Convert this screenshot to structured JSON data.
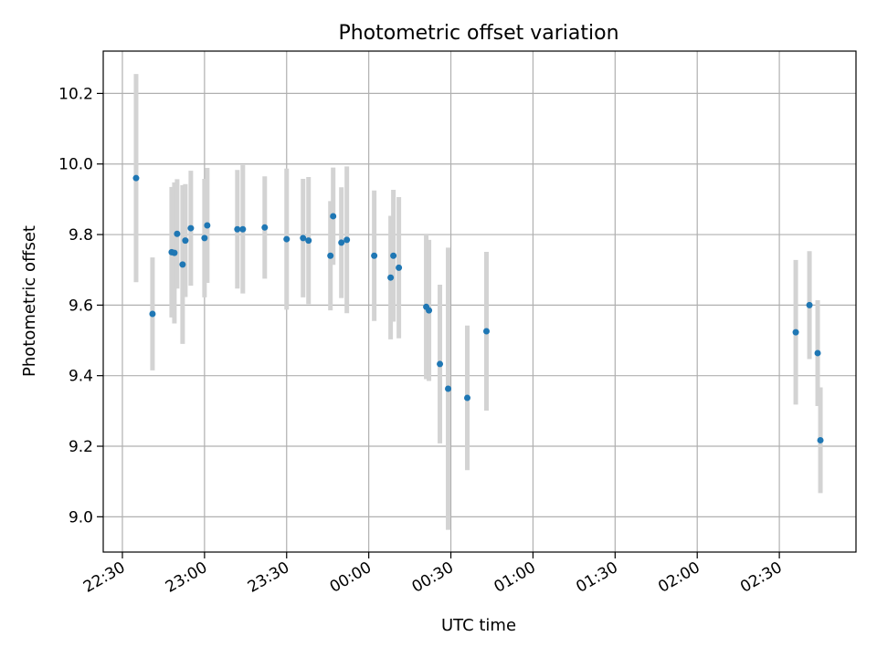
{
  "chart_data": {
    "type": "scatter",
    "title": "Photometric offset variation",
    "xlabel": "UTC time",
    "ylabel": "Photometric offset",
    "x_axis_type": "time",
    "x_range": [
      "22:23",
      "02:58"
    ],
    "x_ticks": [
      "22:30",
      "23:00",
      "23:30",
      "00:00",
      "00:30",
      "01:00",
      "01:30",
      "02:00",
      "02:30"
    ],
    "ylim": [
      8.9,
      10.32
    ],
    "y_ticks": [
      9.0,
      9.2,
      9.4,
      9.6,
      9.8,
      10.0,
      10.2
    ],
    "y_tick_labels": [
      "9.0",
      "9.2",
      "9.4",
      "9.6",
      "9.8",
      "10.0",
      "10.2"
    ],
    "grid": true,
    "marker_color": "#1f77b4",
    "errorbar_color": "#d3d3d3",
    "points": [
      {
        "x": "22:35",
        "y": 9.96,
        "err": 0.295
      },
      {
        "x": "22:41",
        "y": 9.575,
        "err": 0.16
      },
      {
        "x": "22:48",
        "y": 9.75,
        "err": 0.185
      },
      {
        "x": "22:49",
        "y": 9.748,
        "err": 0.2
      },
      {
        "x": "22:50",
        "y": 9.802,
        "err": 0.155
      },
      {
        "x": "22:52",
        "y": 9.715,
        "err": 0.225
      },
      {
        "x": "22:53",
        "y": 9.783,
        "err": 0.16
      },
      {
        "x": "22:55",
        "y": 9.818,
        "err": 0.163
      },
      {
        "x": "23:00",
        "y": 9.79,
        "err": 0.168
      },
      {
        "x": "23:01",
        "y": 9.826,
        "err": 0.163
      },
      {
        "x": "23:12",
        "y": 9.815,
        "err": 0.168
      },
      {
        "x": "23:14",
        "y": 9.815,
        "err": 0.182
      },
      {
        "x": "23:22",
        "y": 9.82,
        "err": 0.145
      },
      {
        "x": "23:30",
        "y": 9.787,
        "err": 0.2
      },
      {
        "x": "23:36",
        "y": 9.79,
        "err": 0.168
      },
      {
        "x": "23:38",
        "y": 9.783,
        "err": 0.18
      },
      {
        "x": "23:46",
        "y": 9.74,
        "err": 0.155
      },
      {
        "x": "23:47",
        "y": 9.852,
        "err": 0.138
      },
      {
        "x": "23:50",
        "y": 9.777,
        "err": 0.157
      },
      {
        "x": "23:52",
        "y": 9.785,
        "err": 0.208
      },
      {
        "x": "00:02",
        "y": 9.74,
        "err": 0.185
      },
      {
        "x": "00:08",
        "y": 9.678,
        "err": 0.175
      },
      {
        "x": "00:09",
        "y": 9.74,
        "err": 0.187
      },
      {
        "x": "00:11",
        "y": 9.706,
        "err": 0.2
      },
      {
        "x": "00:21",
        "y": 9.595,
        "err": 0.205
      },
      {
        "x": "00:22",
        "y": 9.585,
        "err": 0.2
      },
      {
        "x": "00:26",
        "y": 9.433,
        "err": 0.225
      },
      {
        "x": "00:29",
        "y": 9.363,
        "err": 0.4
      },
      {
        "x": "00:36",
        "y": 9.337,
        "err": 0.205
      },
      {
        "x": "00:43",
        "y": 9.526,
        "err": 0.225
      },
      {
        "x": "02:36",
        "y": 9.523,
        "err": 0.205
      },
      {
        "x": "02:41",
        "y": 9.6,
        "err": 0.153
      },
      {
        "x": "02:44",
        "y": 9.464,
        "err": 0.15
      },
      {
        "x": "02:45",
        "y": 9.217,
        "err": 0.15
      }
    ]
  }
}
